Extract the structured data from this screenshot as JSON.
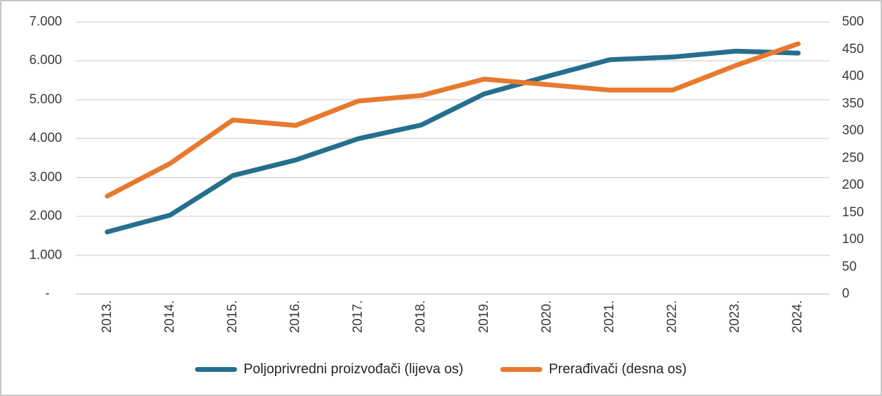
{
  "chart_data": {
    "type": "line",
    "categories": [
      "2013.",
      "2014.",
      "2015.",
      "2016.",
      "2017.",
      "2018.",
      "2019.",
      "2020.",
      "2021.",
      "2022.",
      "2023.",
      "2024."
    ],
    "series": [
      {
        "name": "Poljoprivredni proizvođači (lijeva os)",
        "axis": "left",
        "color": "#256F8D",
        "values": [
          1600,
          2030,
          3050,
          3450,
          4000,
          4350,
          5150,
          5600,
          6030,
          6100,
          6250,
          6200
        ]
      },
      {
        "name": "Prerađivači (desna os)",
        "axis": "right",
        "color": "#E8792E",
        "values": [
          180,
          240,
          320,
          310,
          355,
          365,
          395,
          385,
          375,
          375,
          420,
          460
        ]
      }
    ],
    "left_axis": {
      "min": 0,
      "max": 7000,
      "tick_step": 1000,
      "tick_labels": [
        "-",
        "1.000",
        "2.000",
        "3.000",
        "4.000",
        "5.000",
        "6.000",
        "7.000"
      ]
    },
    "right_axis": {
      "min": 0,
      "max": 500,
      "tick_step": 50,
      "tick_labels": [
        "0",
        "50",
        "100",
        "150",
        "200",
        "250",
        "300",
        "350",
        "400",
        "450",
        "500"
      ]
    },
    "title": "",
    "xlabel": "",
    "ylabel": "",
    "grid": "horizontal",
    "gridline_color": "#d9d9d9",
    "legend_position": "bottom"
  }
}
